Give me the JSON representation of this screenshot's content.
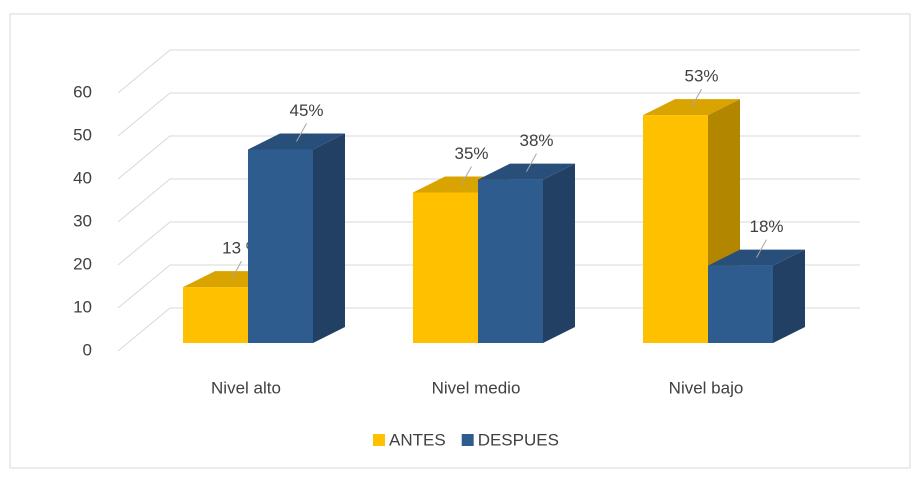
{
  "chart_data": {
    "type": "bar3d",
    "categories": [
      "Nivel alto",
      "Nivel medio",
      "Nivel bajo"
    ],
    "series": [
      {
        "name": "ANTES",
        "color": "#FFC000",
        "values": [
          13,
          35,
          53
        ],
        "value_labels": [
          "13 %",
          "35%",
          "53%"
        ]
      },
      {
        "name": "DESPUES",
        "color": "#2F5C8F",
        "values": [
          45,
          38,
          18
        ],
        "value_labels": [
          "45%",
          "38%",
          "18%"
        ]
      }
    ],
    "ylim": [
      0,
      60
    ],
    "yticks": [
      0,
      10,
      20,
      30,
      40,
      50,
      60
    ],
    "grid": true,
    "legend": "bottom"
  }
}
